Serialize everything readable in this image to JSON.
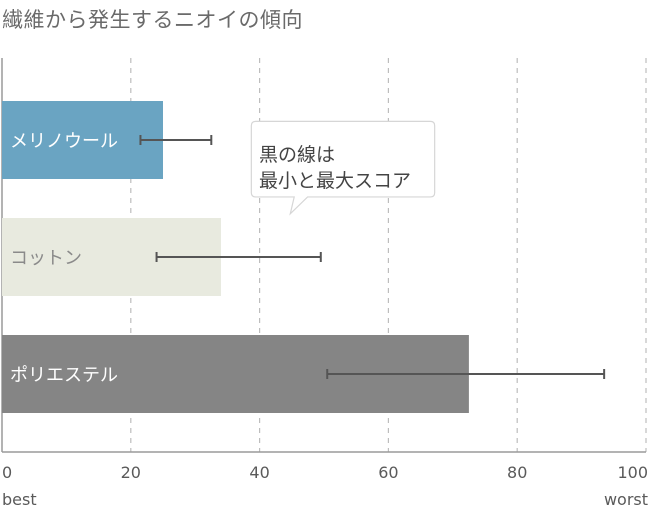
{
  "title": "繊維から発生するニオイの傾向",
  "callout": {
    "line1": "黒の線は",
    "line2": "最小と最大スコア"
  },
  "chart_data": {
    "type": "bar",
    "orientation": "horizontal",
    "title": "繊維から発生するニオイの傾向",
    "xlim": [
      0,
      100
    ],
    "xticks": [
      "0",
      "20",
      "40",
      "60",
      "80",
      "100"
    ],
    "x_low_label": "best",
    "x_high_label": "worst",
    "grid": "vertical dashed",
    "categories": [
      "メリノウール",
      "コットン",
      "ポリエステル"
    ],
    "values": [
      25,
      34,
      72.5
    ],
    "error_ranges": [
      [
        21.5,
        32.5
      ],
      [
        24,
        49.5
      ],
      [
        50.5,
        93.5
      ]
    ],
    "colors": [
      "#6aa4c2",
      "#e8eadf",
      "#858585"
    ],
    "label_colors": [
      "#ffffff",
      "#8a8a8a",
      "#ffffff"
    ],
    "error_color": "#555555"
  }
}
